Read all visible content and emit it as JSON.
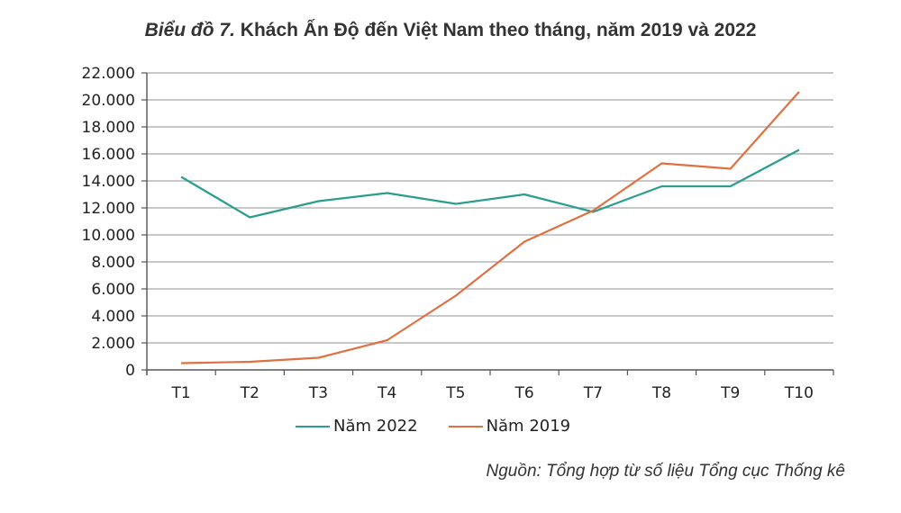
{
  "title": {
    "prefix": "Biểu đồ 7.",
    "text": " Khách Ấn Độ đến Việt Nam theo tháng, năm 2019 và 2022"
  },
  "source": "Nguồn: Tổng hợp từ số liệu Tổng cục Thống kê",
  "chart_data": {
    "type": "line",
    "title": "Biểu đồ 7. Khách Ấn Độ đến Việt Nam theo tháng, năm 2019 và 2022",
    "xlabel": "",
    "ylabel": "",
    "categories": [
      "T1",
      "T2",
      "T3",
      "T4",
      "T5",
      "T6",
      "T7",
      "T8",
      "T9",
      "T10"
    ],
    "ylim": [
      0,
      22000
    ],
    "yticks": [
      0,
      2000,
      4000,
      6000,
      8000,
      10000,
      12000,
      14000,
      16000,
      18000,
      20000,
      22000
    ],
    "ytick_labels": [
      "0",
      "2.000",
      "4.000",
      "6.000",
      "8.000",
      "10.000",
      "12.000",
      "14.000",
      "16.000",
      "18.000",
      "20.000",
      "22.000"
    ],
    "grid": true,
    "legend_position": "bottom",
    "series": [
      {
        "name": "Năm 2022",
        "color": "#2a9d8f",
        "values": [
          14300,
          11300,
          12500,
          13100,
          12300,
          13000,
          11700,
          13600,
          13600,
          16300
        ]
      },
      {
        "name": "Năm 2019",
        "color": "#e07040",
        "values": [
          500,
          600,
          900,
          2200,
          5500,
          9500,
          11800,
          15300,
          14900,
          20600
        ]
      }
    ]
  }
}
